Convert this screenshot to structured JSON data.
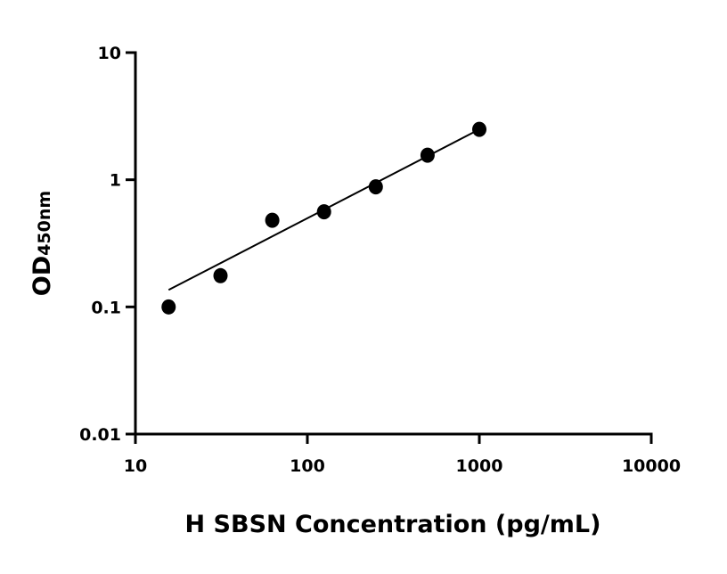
{
  "chart_data": {
    "type": "scatter",
    "title": "",
    "xlabel": "H SBSN Concentration (pg/mL)",
    "ylabel": "OD",
    "ylabel_subscript": "450nm",
    "x_scale": "log",
    "y_scale": "log",
    "xlim": [
      10,
      10000
    ],
    "ylim": [
      0.01,
      10
    ],
    "x_ticks": [
      10,
      100,
      1000,
      10000
    ],
    "x_tick_labels": [
      "10",
      "100",
      "1000",
      "10000"
    ],
    "y_ticks": [
      0.01,
      0.1,
      1,
      10
    ],
    "y_tick_labels": [
      "0.01",
      "0.1",
      "1",
      "10"
    ],
    "grid": false,
    "legend": "none",
    "series": [
      {
        "x": [
          15.6,
          31.25,
          62.5,
          125,
          250,
          500,
          1000
        ],
        "y": [
          0.1,
          0.176,
          0.48,
          0.56,
          0.88,
          1.56,
          2.49
        ],
        "marker": "circle",
        "color": "#000000"
      }
    ],
    "fit_line": {
      "x": [
        15.6,
        1000
      ],
      "y": [
        0.136,
        2.49
      ],
      "color": "#000000"
    }
  }
}
